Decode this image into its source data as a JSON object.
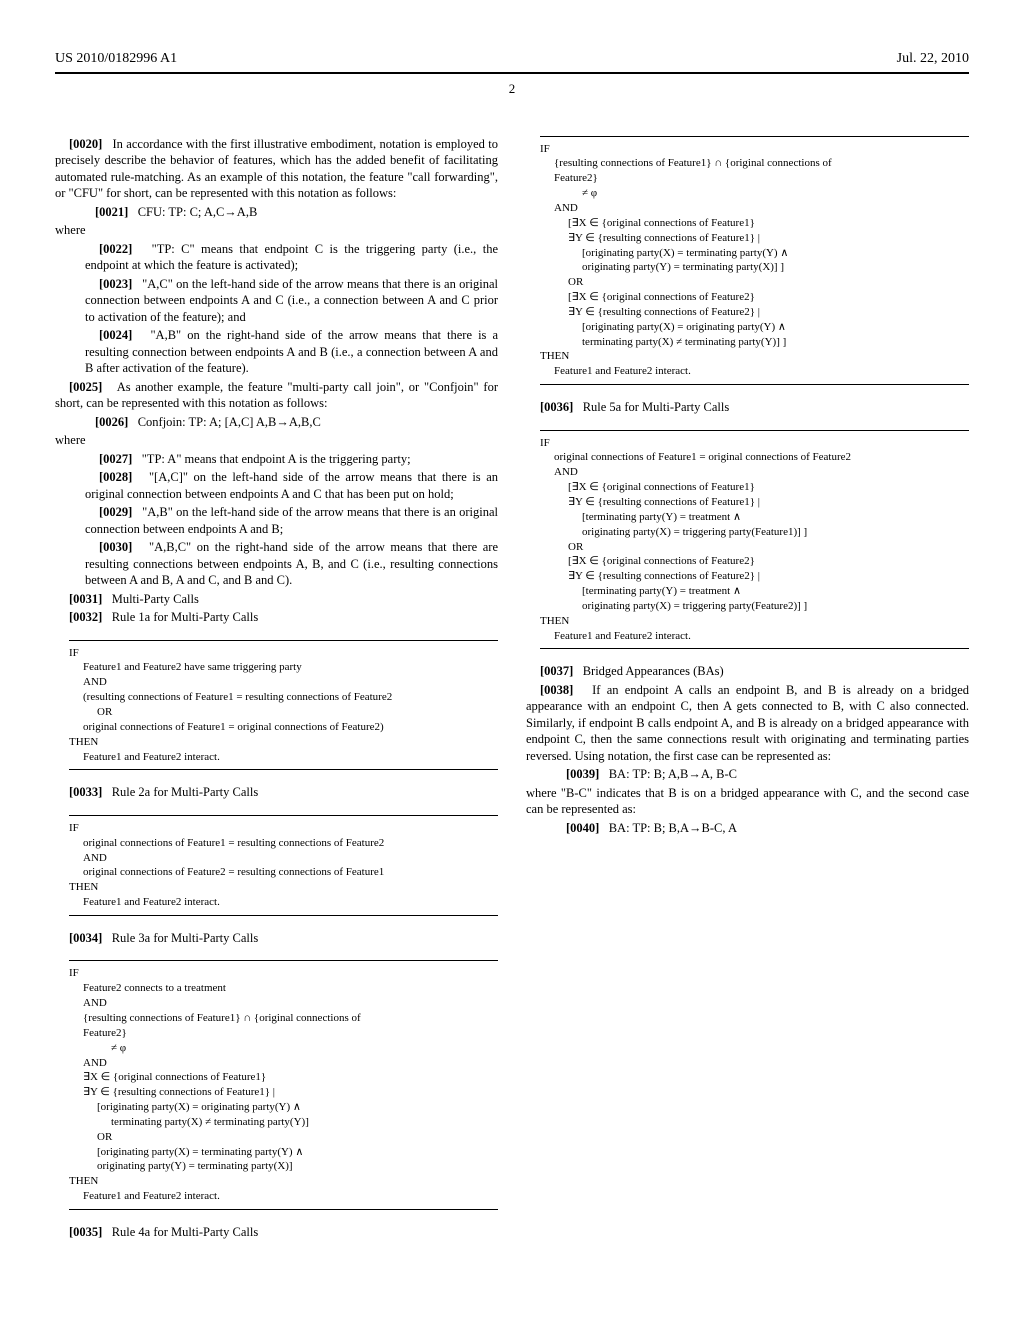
{
  "doc": {
    "pub_number": "US 2010/0182996 A1",
    "pub_date": "Jul. 22, 2010",
    "page_number": "2"
  },
  "left": {
    "p20": "In accordance with the first illustrative embodiment, notation is employed to precisely describe the behavior of features, which has the added benefit of facilitating automated rule-matching. As an example of this notation, the feature \"call forwarding\", or \"CFU\" for short, can be represented with this notation as follows:",
    "p21_formula": "CFU: TP: C; A,C→A,B",
    "where1": "where",
    "p22": "\"TP: C\" means that endpoint C is the triggering party (i.e., the endpoint at which the feature is activated);",
    "p23": "\"A,C\" on the left-hand side of the arrow means that there is an original connection between endpoints A and C (i.e., a connection between A and C prior to activation of the feature); and",
    "p24": "\"A,B\" on the right-hand side of the arrow means that there is a resulting connection between endpoints A and B (i.e., a connection between A and B after activation of the feature).",
    "p25": "As another example, the feature \"multi-party call join\", or \"Confjoin\" for short, can be represented with this notation as follows:",
    "p26_formula": "Confjoin: TP: A; [A,C] A,B→A,B,C",
    "where2": "where",
    "p27": "\"TP: A\" means that endpoint A is the triggering party;",
    "p28": "\"[A,C]\" on the left-hand side of the arrow means that there is an original connection between endpoints A and C that has been put on hold;",
    "p29": "\"A,B\" on the left-hand side of the arrow means that there is an original connection between endpoints A and B;",
    "p30": "\"A,B,C\" on the right-hand side of the arrow means that there are resulting connections between endpoints A, B, and C (i.e., resulting connections between A and B, A and C, and B and C).",
    "p31": "Multi-Party Calls",
    "p32": "Rule 1a for Multi-Party Calls",
    "rule1a": {
      "l1": "IF",
      "l2": "Feature1 and Feature2 have same triggering party",
      "l3": "AND",
      "l4": "(resulting connections of Feature1 = resulting connections of Feature2",
      "l5": "OR",
      "l6": "original connections of Feature1 = original connections of Feature2)",
      "l7": "THEN",
      "l8": "Feature1 and Feature2 interact."
    },
    "p33": "Rule 2a for Multi-Party Calls",
    "rule2a": {
      "l1": "IF",
      "l2": "original connections of Feature1 = resulting connections of Feature2",
      "l3": "AND",
      "l4": "original connections of Feature2 = resulting connections of Feature1",
      "l5": "THEN",
      "l6": "Feature1 and Feature2 interact."
    }
  },
  "right": {
    "p34": "Rule 3a for Multi-Party Calls",
    "rule3a": {
      "l1": "IF",
      "l2": "Feature2 connects to a treatment",
      "l3": "AND",
      "l4": "{resulting connections of Feature1} ∩ {original connections of",
      "l5": "Feature2}",
      "l6": "≠ φ",
      "l7": "AND",
      "l8": "∃X ∈ {original connections of Feature1}",
      "l9": "∃Y ∈ {resulting connections of Feature1} |",
      "l10": "[originating party(X) = originating party(Y) ∧",
      "l11": "terminating party(X) ≠ terminating party(Y)]",
      "l12": "OR",
      "l13": "[originating party(X) = terminating party(Y) ∧",
      "l14": "originating party(Y) = terminating party(X)]",
      "l15": "THEN",
      "l16": "Feature1 and Feature2 interact."
    },
    "p35": "Rule 4a for Multi-Party Calls",
    "rule4a": {
      "l1": "IF",
      "l2": "{resulting connections of Feature1} ∩ {original connections of",
      "l3": "Feature2}",
      "l4": "≠ φ",
      "l5": "AND",
      "l6": "[∃X ∈ {original connections of Feature1}",
      "l7": "∃Y ∈ {resulting connections of Feature1} |",
      "l8": "[originating party(X) = terminating party(Y) ∧",
      "l9": "originating party(Y) = terminating party(X)] ]",
      "l10": "OR",
      "l11": "[∃X ∈ {original connections of Feature2}",
      "l12": "∃Y ∈ {resulting connections of Feature2} |",
      "l13": "[originating party(X) = originating party(Y) ∧",
      "l14": "terminating party(X) ≠ terminating party(Y)] ]",
      "l15": "THEN",
      "l16": "Feature1 and Feature2 interact."
    },
    "p36": "Rule 5a for Multi-Party Calls",
    "rule5a": {
      "l1": "IF",
      "l2": "original connections of Feature1 = original connections of Feature2",
      "l3": "AND",
      "l4": "[∃X ∈ {original connections of Feature1}",
      "l5": "∃Y ∈ {resulting connections of Feature1} |",
      "l6": "[terminating party(Y) = treatment ∧",
      "l7": "originating party(X) = triggering party(Feature1)] ]",
      "l8": "OR",
      "l9": "[∃X ∈ {original connections of Feature2}",
      "l10": "∃Y ∈ {resulting connections of Feature2} |",
      "l11": "[terminating party(Y) = treatment ∧",
      "l12": "originating party(X) = triggering party(Feature2)] ]",
      "l13": "THEN",
      "l14": "Feature1 and Feature2 interact."
    },
    "p37": "Bridged Appearances (BAs)",
    "p38": "If an endpoint A calls an endpoint B, and B is already on a bridged appearance with an endpoint C, then A gets connected to B, with C also connected. Similarly, if endpoint B calls endpoint A, and B is already on a bridged appearance with endpoint C, then the same connections result with originating and terminating parties reversed. Using notation, the first case can be represented as:",
    "p39_formula": "BA: TP: B; A,B→A, B-C",
    "p39_after": "where \"B-C\" indicates that B is on a bridged appearance with C, and the second case can be represented as:",
    "p40_formula": "BA: TP: B; B,A→B-C, A"
  },
  "numbers": {
    "p20": "[0020]",
    "p21": "[0021]",
    "p22": "[0022]",
    "p23": "[0023]",
    "p24": "[0024]",
    "p25": "[0025]",
    "p26": "[0026]",
    "p27": "[0027]",
    "p28": "[0028]",
    "p29": "[0029]",
    "p30": "[0030]",
    "p31": "[0031]",
    "p32": "[0032]",
    "p33": "[0033]",
    "p34": "[0034]",
    "p35": "[0035]",
    "p36": "[0036]",
    "p37": "[0037]",
    "p38": "[0038]",
    "p39": "[0039]",
    "p40": "[0040]"
  }
}
